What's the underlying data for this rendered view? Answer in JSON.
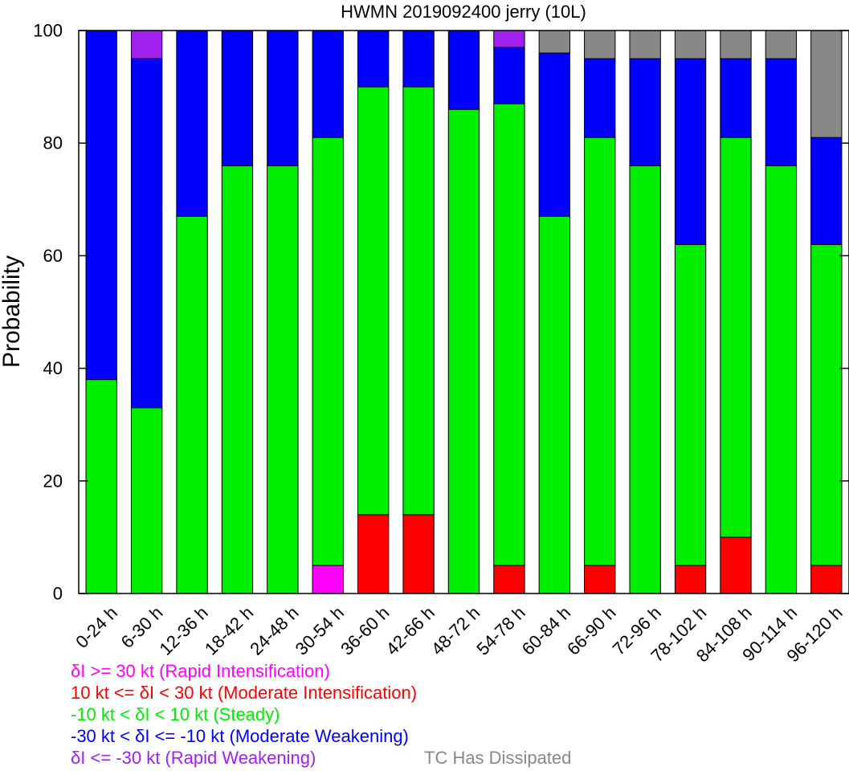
{
  "chart_data": {
    "type": "bar",
    "stacked": true,
    "title": "HWMN 2019092400 jerry (10L)",
    "xlabel": "",
    "ylabel": "Probability",
    "ylim": [
      0,
      100
    ],
    "yticks": [
      0,
      20,
      40,
      60,
      80,
      100
    ],
    "grid": false,
    "categories": [
      "0-24 h",
      "6-30 h",
      "12-36 h",
      "18-42 h",
      "24-48 h",
      "30-54 h",
      "36-60 h",
      "42-66 h",
      "48-72 h",
      "54-78 h",
      "60-84 h",
      "66-90 h",
      "72-96 h",
      "78-102 h",
      "84-108 h",
      "90-114 h",
      "96-120 h"
    ],
    "series": [
      {
        "name": "δI <= -30 kt (Rapid Weakening)",
        "color": "#a020f0",
        "values": [
          0,
          5,
          0,
          0,
          0,
          0,
          0,
          0,
          0,
          3,
          0,
          0,
          0,
          0,
          0,
          0,
          0
        ]
      },
      {
        "name": "-30 kt < δI <= -10 kt (Moderate Weakening)",
        "color": "#0000ff",
        "values": [
          62,
          62,
          33,
          24,
          24,
          19,
          10,
          10,
          14,
          10,
          29,
          14,
          19,
          33,
          14,
          19,
          19
        ]
      },
      {
        "name": "-10 kt < δI < 10 kt (Steady)",
        "color": "#00ee00",
        "values": [
          38,
          33,
          67,
          76,
          76,
          76,
          76,
          76,
          86,
          82,
          67,
          76,
          76,
          57,
          71,
          76,
          57
        ]
      },
      {
        "name": "10 kt <= δI < 30 kt (Moderate Intensification)",
        "color": "#ff0000",
        "values": [
          0,
          0,
          0,
          0,
          0,
          0,
          14,
          14,
          0,
          5,
          0,
          5,
          0,
          5,
          10,
          0,
          5
        ]
      },
      {
        "name": "δI >= 30 kt (Rapid Intensification)",
        "color": "#ff00ff",
        "values": [
          0,
          0,
          0,
          0,
          0,
          5,
          0,
          0,
          0,
          0,
          0,
          0,
          0,
          0,
          0,
          0,
          0
        ]
      },
      {
        "name": "TC Has Dissipated",
        "color": "#888888",
        "values": [
          0,
          0,
          0,
          0,
          0,
          0,
          0,
          0,
          0,
          0,
          4,
          5,
          5,
          5,
          5,
          5,
          19
        ]
      }
    ],
    "stack_order_bottom_to_top": [
      "δI >= 30 kt (Rapid Intensification)",
      "10 kt <= δI < 30 kt (Moderate Intensification)",
      "-10 kt < δI < 10 kt (Steady)",
      "-30 kt < δI <= -10 kt (Moderate Weakening)",
      "δI <= -30 kt (Rapid Weakening)",
      "TC Has Dissipated"
    ]
  },
  "legend": {
    "ri": "δI >= 30 kt (Rapid Intensification)",
    "mi": "10 kt <= δI < 30 kt (Moderate Intensification)",
    "steady": "-10 kt < δI < 10 kt (Steady)",
    "mw": "-30 kt < δI <= -10 kt (Moderate Weakening)",
    "rw": "δI <= -30 kt (Rapid Weakening)",
    "dissipated": "TC Has Dissipated"
  },
  "colors": {
    "ri": "#ff00ff",
    "mi": "#ff0000",
    "steady": "#00ee00",
    "mw": "#0000ff",
    "rw": "#a020f0",
    "dissipated": "#888888"
  }
}
